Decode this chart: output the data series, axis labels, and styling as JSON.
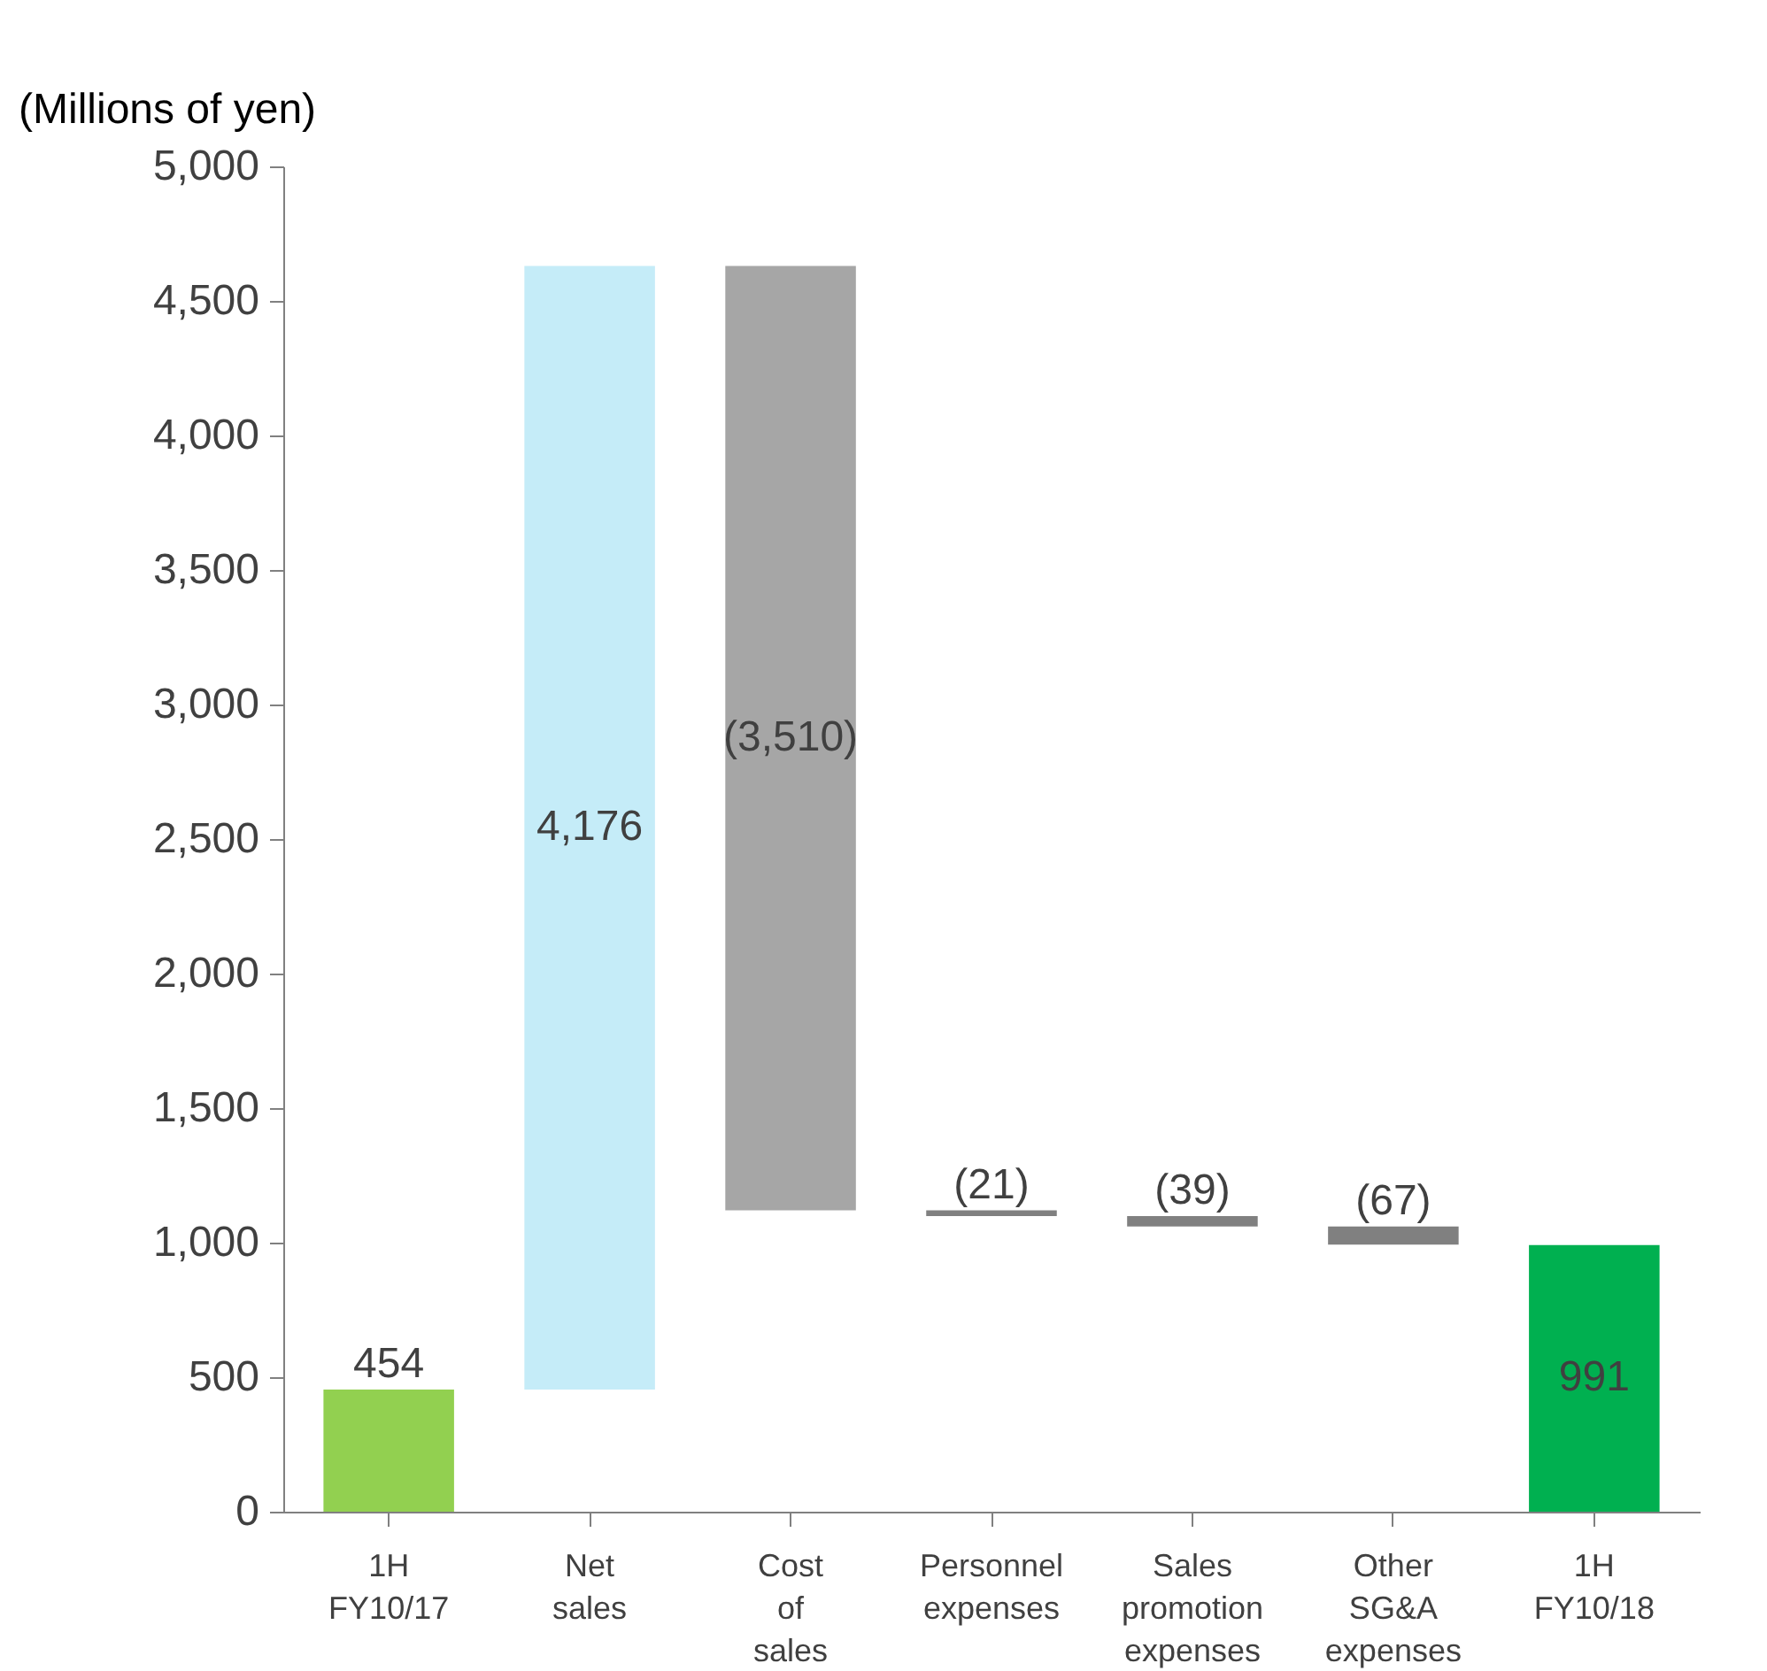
{
  "chart_data": {
    "type": "bar",
    "ylabel": "(Millions of yen)",
    "categories": [
      "1H FY10/17",
      "Net sales",
      "Cost of sales",
      "Personnel expenses",
      "Sales promotion expenses",
      "Other SG&A expenses",
      "1H FY10/18"
    ],
    "values": [
      454,
      4176,
      -3510,
      -21,
      -39,
      -67,
      991
    ],
    "base": [
      0,
      454,
      4630,
      1120,
      1099,
      1060,
      0
    ],
    "colors": [
      "#92d050",
      "#c5ecf8",
      "#a6a6a6",
      "#808080",
      "#808080",
      "#808080",
      "#00b050"
    ],
    "value_labels": [
      "454",
      "4,176",
      "(3,510)",
      "(21)",
      "(39)",
      "(67)",
      "991"
    ],
    "ylim": [
      0,
      5000
    ],
    "yticks": [
      0,
      500,
      {
        "value": 1000,
        "label": "1,000"
      },
      {
        "value": 1500,
        "label": "1,500"
      },
      {
        "value": 2000,
        "label": "2,000"
      },
      {
        "value": 2500,
        "label": "2,500"
      },
      {
        "value": 3000,
        "label": "3,000"
      },
      {
        "value": 3500,
        "label": "3,500"
      },
      {
        "value": 4000,
        "label": "4,000"
      },
      {
        "value": 4500,
        "label": "4,500"
      },
      {
        "value": 5000,
        "label": "5,000"
      }
    ],
    "grid": false,
    "legend": false
  }
}
